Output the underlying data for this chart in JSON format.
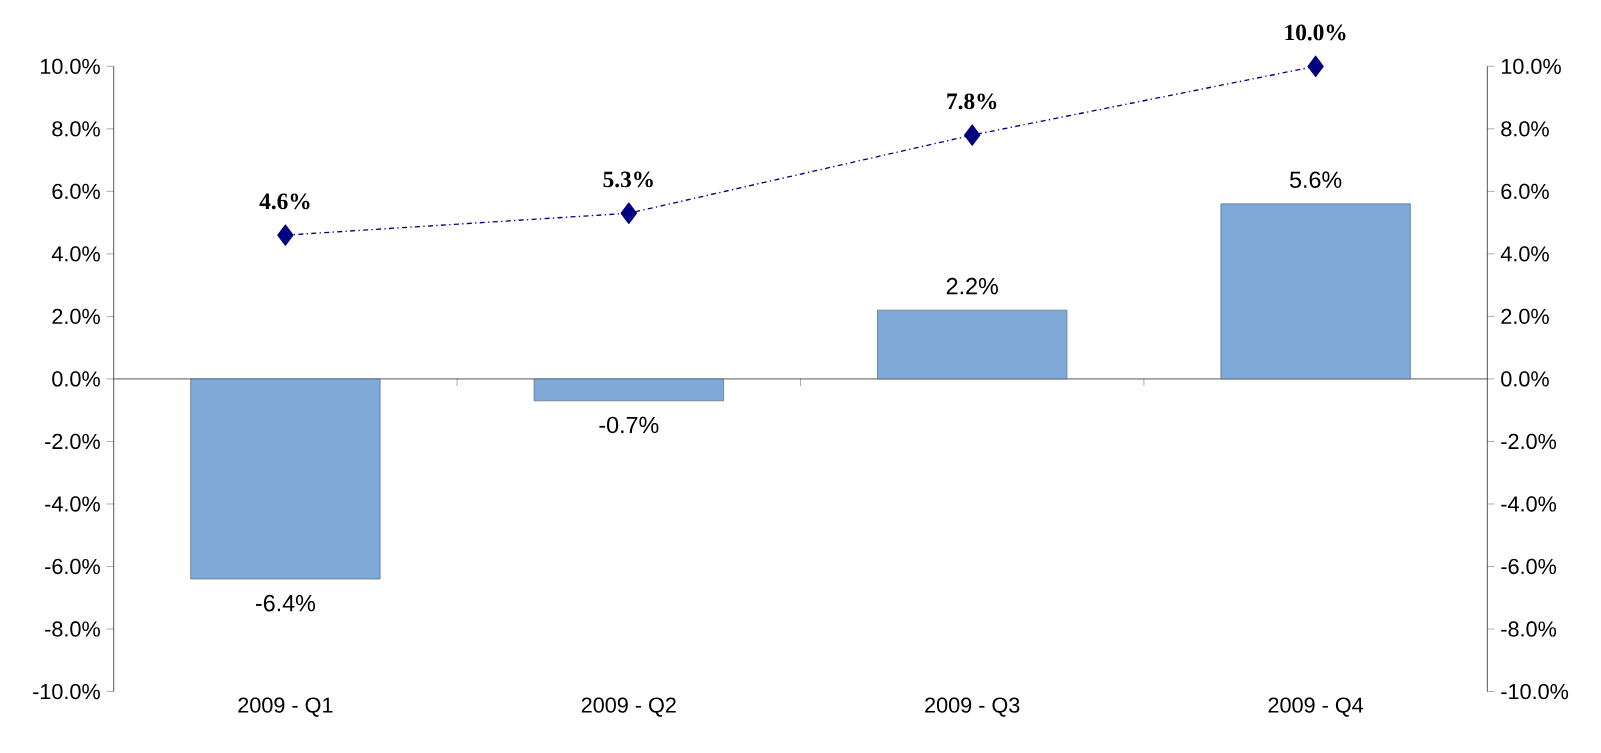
{
  "chart_data": {
    "type": "bar",
    "categories": [
      "2009 - Q1",
      "2009 - Q2",
      "2009 - Q3",
      "2009 - Q4"
    ],
    "series": [
      {
        "color": "#7fa9d6",
        "values": [
          -6.4,
          -0.7,
          2.2,
          5.6
        ],
        "value_labels": [
          "-6.4%",
          "-0.7%",
          "2.2%",
          "5.6%"
        ]
      },
      {
        "type": "line",
        "axis": "y2",
        "color": "#000080",
        "marker": "diamond",
        "line_style": "dashed",
        "values": [
          4.6,
          5.3,
          7.8,
          10.0
        ],
        "value_labels": [
          "4.6%",
          "5.3%",
          "7.8%",
          "10.0%"
        ]
      }
    ],
    "ylim": [
      -10,
      10
    ],
    "yticks": [
      {
        "value": -10,
        "label": "-10.0%"
      },
      {
        "value": -8,
        "label": "-8.0%"
      },
      {
        "value": -6,
        "label": "-6.0%"
      },
      {
        "value": -4,
        "label": "-4.0%"
      },
      {
        "value": -2,
        "label": "-2.0%"
      },
      {
        "value": 0,
        "label": "0.0%"
      },
      {
        "value": 2,
        "label": "2.0%"
      },
      {
        "value": 4,
        "label": "4.0%"
      },
      {
        "value": 6,
        "label": "6.0%"
      },
      {
        "value": 8,
        "label": "8.0%"
      },
      {
        "value": 10,
        "label": "10.0%"
      }
    ],
    "y2lim": [
      -10,
      10
    ],
    "y2ticks": [
      {
        "value": -10,
        "label": "-10.0%"
      },
      {
        "value": -8,
        "label": "-8.0%"
      },
      {
        "value": -6,
        "label": "-6.0%"
      },
      {
        "value": -4,
        "label": "-4.0%"
      },
      {
        "value": -2,
        "label": "-2.0%"
      },
      {
        "value": 0,
        "label": "0.0%"
      },
      {
        "value": 2,
        "label": "2.0%"
      },
      {
        "value": 4,
        "label": "4.0%"
      },
      {
        "value": 6,
        "label": "6.0%"
      },
      {
        "value": 8,
        "label": "8.0%"
      },
      {
        "value": 10,
        "label": "10.0%"
      }
    ]
  }
}
